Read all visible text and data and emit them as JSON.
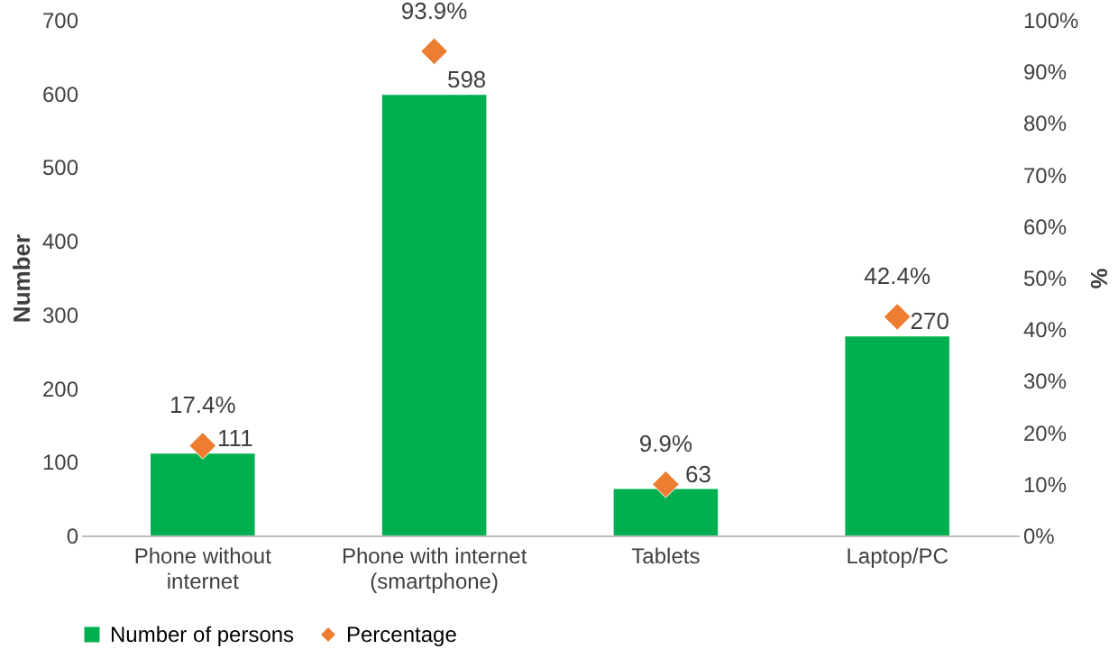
{
  "chart_data": {
    "type": "bar",
    "categories": [
      "Phone without internet",
      "Phone with internet (smartphone)",
      "Tablets",
      "Laptop/PC"
    ],
    "ylabel": "Number",
    "y2label": "%",
    "ylim": [
      0,
      700
    ],
    "yticks": [
      0,
      100,
      200,
      300,
      400,
      500,
      600,
      700
    ],
    "y2lim": [
      0,
      100
    ],
    "y2ticks": [
      {
        "value": 0,
        "label": "0%"
      },
      {
        "value": 10,
        "label": "10%"
      },
      {
        "value": 20,
        "label": "20%"
      },
      {
        "value": 30,
        "label": "30%"
      },
      {
        "value": 40,
        "label": "40%"
      },
      {
        "value": 50,
        "label": "50%"
      },
      {
        "value": 60,
        "label": "60%"
      },
      {
        "value": 70,
        "label": "70%"
      },
      {
        "value": 80,
        "label": "80%"
      },
      {
        "value": 90,
        "label": "90%"
      },
      {
        "value": 100,
        "label": "100%"
      }
    ],
    "series": [
      {
        "name": "Number of persons",
        "color": "#00b050",
        "values": [
          111,
          598,
          63,
          270
        ],
        "value_labels": [
          "111",
          "598",
          "63",
          "270"
        ]
      },
      {
        "name": "Percentage",
        "type": "scatter",
        "axis": "y2",
        "marker": "diamond",
        "color": "#ed7d31",
        "values": [
          17.4,
          93.9,
          9.9,
          42.4
        ],
        "value_labels": [
          "17.4%",
          "93.9%",
          "9.9%",
          "42.4%"
        ]
      }
    ],
    "legend": "bottom",
    "grid": false
  }
}
